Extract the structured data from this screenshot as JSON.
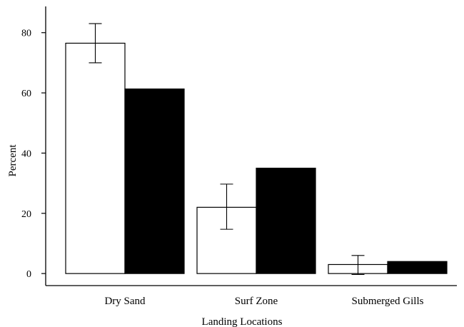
{
  "chart_data": {
    "type": "bar",
    "title": "",
    "xlabel": "Landing Locations",
    "ylabel": "Percent",
    "ylim": [
      -4,
      88
    ],
    "yticks": [
      0,
      20,
      40,
      60,
      80
    ],
    "categories": [
      "Dry Sand",
      "Surf Zone",
      "Submerged Gills"
    ],
    "series": [
      {
        "fill": "#ffffff",
        "stroke": "#000000",
        "values": [
          76.5,
          22,
          3
        ],
        "error_low": [
          70,
          14.7,
          -0.3
        ],
        "error_high": [
          83,
          29.7,
          6
        ]
      },
      {
        "fill": "#000000",
        "stroke": "#000000",
        "values": [
          61.3,
          35,
          4
        ]
      }
    ],
    "grid": false,
    "legend": "none"
  },
  "colors": {
    "axis": "#000000",
    "bar_open": "#ffffff",
    "bar_filled": "#000000"
  }
}
